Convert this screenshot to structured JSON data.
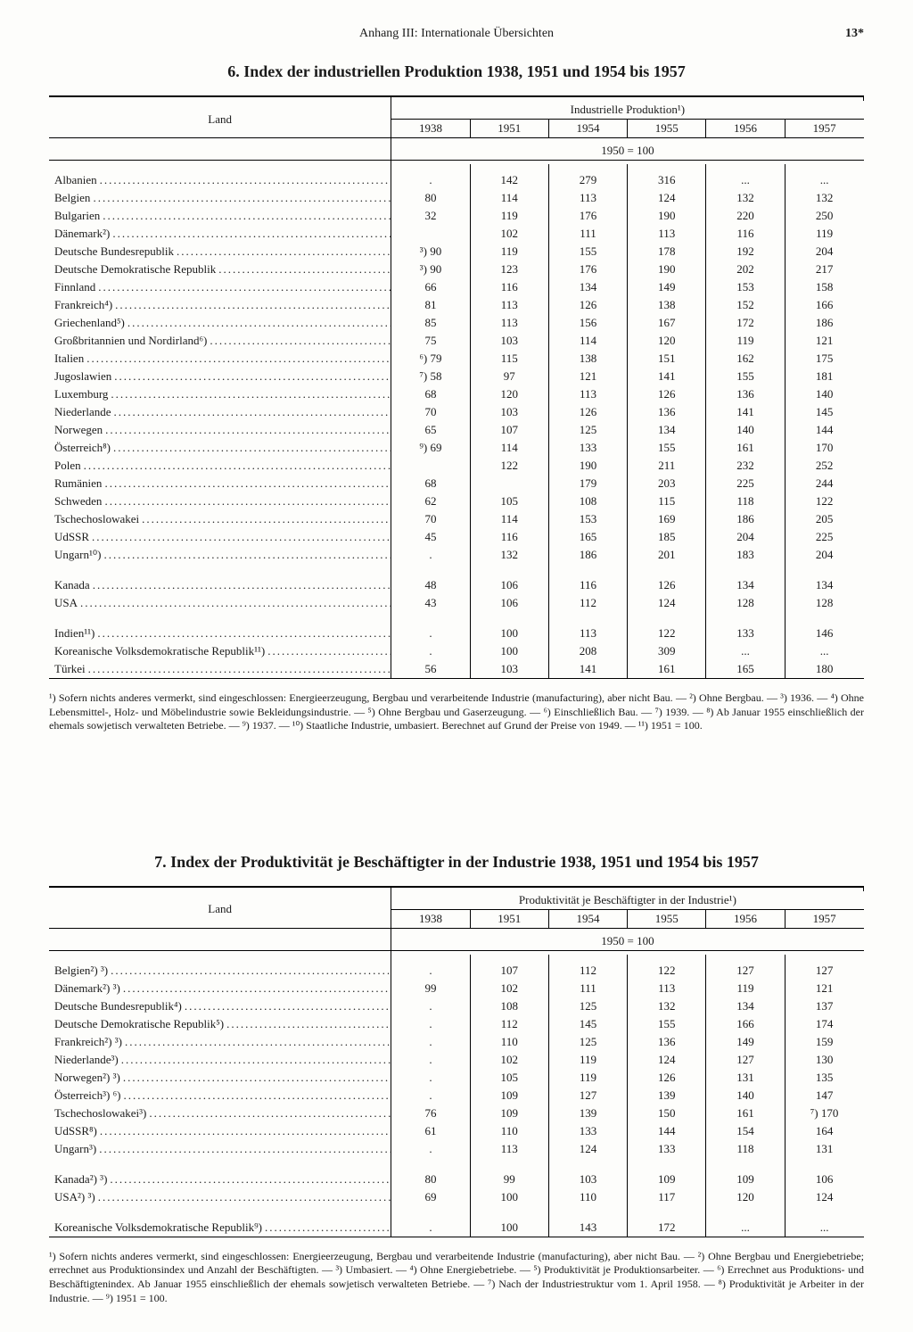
{
  "header": {
    "center": "Anhang III: Internationale Übersichten",
    "page": "13*"
  },
  "table6": {
    "title": "6. Index der industriellen Produktion 1938, 1951 und 1954 bis 1957",
    "superheader": "Industrielle Produktion¹)",
    "land_header": "Land",
    "year_headers": [
      "1938",
      "1951",
      "1954",
      "1955",
      "1956",
      "1957"
    ],
    "base_label": "1950 = 100",
    "groups": [
      [
        {
          "land": "Albanien",
          "v": [
            ".",
            "142",
            "279",
            "316",
            "...",
            "..."
          ]
        },
        {
          "land": "Belgien",
          "v": [
            "80",
            "114",
            "113",
            "124",
            "132",
            "132"
          ]
        },
        {
          "land": "Bulgarien",
          "v": [
            "32",
            "119",
            "176",
            "190",
            "220",
            "250"
          ]
        },
        {
          "land": "Dänemark²)",
          "v": [
            "",
            "102",
            "111",
            "113",
            "116",
            "119"
          ]
        },
        {
          "land": "Deutsche Bundesrepublik",
          "v": [
            "³) 90",
            "119",
            "155",
            "178",
            "192",
            "204"
          ]
        },
        {
          "land": "Deutsche Demokratische Republik",
          "v": [
            "³) 90",
            "123",
            "176",
            "190",
            "202",
            "217"
          ]
        },
        {
          "land": "Finnland",
          "v": [
            "66",
            "116",
            "134",
            "149",
            "153",
            "158"
          ]
        },
        {
          "land": "Frankreich⁴)",
          "v": [
            "81",
            "113",
            "126",
            "138",
            "152",
            "166"
          ]
        },
        {
          "land": "Griechenland⁵)",
          "v": [
            "85",
            "113",
            "156",
            "167",
            "172",
            "186"
          ]
        },
        {
          "land": "Großbritannien und Nordirland⁶)",
          "v": [
            "75",
            "103",
            "114",
            "120",
            "119",
            "121"
          ]
        },
        {
          "land": "Italien",
          "v": [
            "⁶) 79",
            "115",
            "138",
            "151",
            "162",
            "175"
          ]
        },
        {
          "land": "Jugoslawien",
          "v": [
            "⁷) 58",
            "97",
            "121",
            "141",
            "155",
            "181"
          ]
        },
        {
          "land": "Luxemburg",
          "v": [
            "68",
            "120",
            "113",
            "126",
            "136",
            "140"
          ]
        },
        {
          "land": "Niederlande",
          "v": [
            "70",
            "103",
            "126",
            "136",
            "141",
            "145"
          ]
        },
        {
          "land": "Norwegen",
          "v": [
            "65",
            "107",
            "125",
            "134",
            "140",
            "144"
          ]
        },
        {
          "land": "Österreich⁸)",
          "v": [
            "⁹) 69",
            "114",
            "133",
            "155",
            "161",
            "170"
          ]
        },
        {
          "land": "Polen",
          "v": [
            "",
            "122",
            "190",
            "211",
            "232",
            "252"
          ]
        },
        {
          "land": "Rumänien",
          "v": [
            "68",
            "",
            "179",
            "203",
            "225",
            "244"
          ]
        },
        {
          "land": "Schweden",
          "v": [
            "62",
            "105",
            "108",
            "115",
            "118",
            "122"
          ]
        },
        {
          "land": "Tschechoslowakei",
          "v": [
            "70",
            "114",
            "153",
            "169",
            "186",
            "205"
          ]
        },
        {
          "land": "UdSSR",
          "v": [
            "45",
            "116",
            "165",
            "185",
            "204",
            "225"
          ]
        },
        {
          "land": "Ungarn¹⁰)",
          "v": [
            ".",
            "132",
            "186",
            "201",
            "183",
            "204"
          ]
        }
      ],
      [
        {
          "land": "Kanada",
          "v": [
            "48",
            "106",
            "116",
            "126",
            "134",
            "134"
          ]
        },
        {
          "land": "USA",
          "v": [
            "43",
            "106",
            "112",
            "124",
            "128",
            "128"
          ]
        }
      ],
      [
        {
          "land": "Indien¹¹)",
          "v": [
            ".",
            "100",
            "113",
            "122",
            "133",
            "146"
          ]
        },
        {
          "land": "Koreanische Volksdemokratische Republik¹¹)",
          "v": [
            ".",
            "100",
            "208",
            "309",
            "...",
            "..."
          ]
        },
        {
          "land": "Türkei",
          "v": [
            "56",
            "103",
            "141",
            "161",
            "165",
            "180"
          ]
        }
      ]
    ],
    "footnote": "¹) Sofern nichts anderes vermerkt, sind eingeschlossen: Energieerzeugung, Bergbau und verarbeitende Industrie (manufacturing), aber nicht Bau. — ²) Ohne Bergbau. — ³) 1936. — ⁴) Ohne Lebensmittel-, Holz- und Möbelindustrie sowie Bekleidungsindustrie. — ⁵) Ohne Bergbau und Gaserzeugung. — ⁶) Einschließlich Bau. — ⁷) 1939. — ⁸) Ab Januar 1955 einschließlich der ehemals sowjetisch verwalteten Betriebe. — ⁹) 1937. — ¹⁰) Staatliche Industrie, umbasiert. Berechnet auf Grund der Preise von 1949. — ¹¹) 1951 = 100."
  },
  "table7": {
    "title": "7. Index der Produktivität je Beschäftigter in der Industrie 1938, 1951 und 1954 bis 1957",
    "superheader": "Produktivität je Beschäftigter in der Industrie¹)",
    "land_header": "Land",
    "year_headers": [
      "1938",
      "1951",
      "1954",
      "1955",
      "1956",
      "1957"
    ],
    "base_label": "1950 = 100",
    "groups": [
      [
        {
          "land": "Belgien²) ³)",
          "v": [
            ".",
            "107",
            "112",
            "122",
            "127",
            "127"
          ]
        },
        {
          "land": "Dänemark²) ³)",
          "v": [
            "99",
            "102",
            "111",
            "113",
            "119",
            "121"
          ]
        },
        {
          "land": "Deutsche Bundesrepublik⁴)",
          "v": [
            ".",
            "108",
            "125",
            "132",
            "134",
            "137"
          ]
        },
        {
          "land": "Deutsche Demokratische Republik⁵)",
          "v": [
            ".",
            "112",
            "145",
            "155",
            "166",
            "174"
          ]
        },
        {
          "land": "Frankreich²) ³)",
          "v": [
            ".",
            "110",
            "125",
            "136",
            "149",
            "159"
          ]
        },
        {
          "land": "Niederlande³)",
          "v": [
            ".",
            "102",
            "119",
            "124",
            "127",
            "130"
          ]
        },
        {
          "land": "Norwegen²) ³)",
          "v": [
            ".",
            "105",
            "119",
            "126",
            "131",
            "135"
          ]
        },
        {
          "land": "Österreich³) ⁶)",
          "v": [
            ".",
            "109",
            "127",
            "139",
            "140",
            "147"
          ]
        },
        {
          "land": "Tschechoslowakei³)",
          "v": [
            "76",
            "109",
            "139",
            "150",
            "161",
            "⁷) 170"
          ]
        },
        {
          "land": "UdSSR⁸)",
          "v": [
            "61",
            "110",
            "133",
            "144",
            "154",
            "164"
          ]
        },
        {
          "land": "Ungarn³)",
          "v": [
            ".",
            "113",
            "124",
            "133",
            "118",
            "131"
          ]
        }
      ],
      [
        {
          "land": "Kanada²) ³)",
          "v": [
            "80",
            "99",
            "103",
            "109",
            "109",
            "106"
          ]
        },
        {
          "land": "USA²) ³)",
          "v": [
            "69",
            "100",
            "110",
            "117",
            "120",
            "124"
          ]
        }
      ],
      [
        {
          "land": "Koreanische Volksdemokratische Republik⁹)",
          "v": [
            ".",
            "100",
            "143",
            "172",
            "...",
            "..."
          ]
        }
      ]
    ],
    "footnote": "¹) Sofern nichts anderes vermerkt, sind eingeschlossen: Energieerzeugung, Bergbau und verarbeitende Industrie (manufacturing), aber nicht Bau. — ²) Ohne Bergbau und Energiebetriebe; errechnet aus Produktionsindex und Anzahl der Beschäftigten. — ³) Umbasiert. — ⁴) Ohne Energiebetriebe. — ⁵) Produktivität je Produktionsarbeiter. — ⁶) Errechnet aus Produktions- und Beschäftigtenindex. Ab Januar 1955 einschließlich der ehemals sowjetisch verwalteten Betriebe. — ⁷) Nach der Industriestruktur vom 1. April 1958. — ⁸) Produktivität je Arbeiter in der Industrie. — ⁹) 1951 = 100."
  }
}
